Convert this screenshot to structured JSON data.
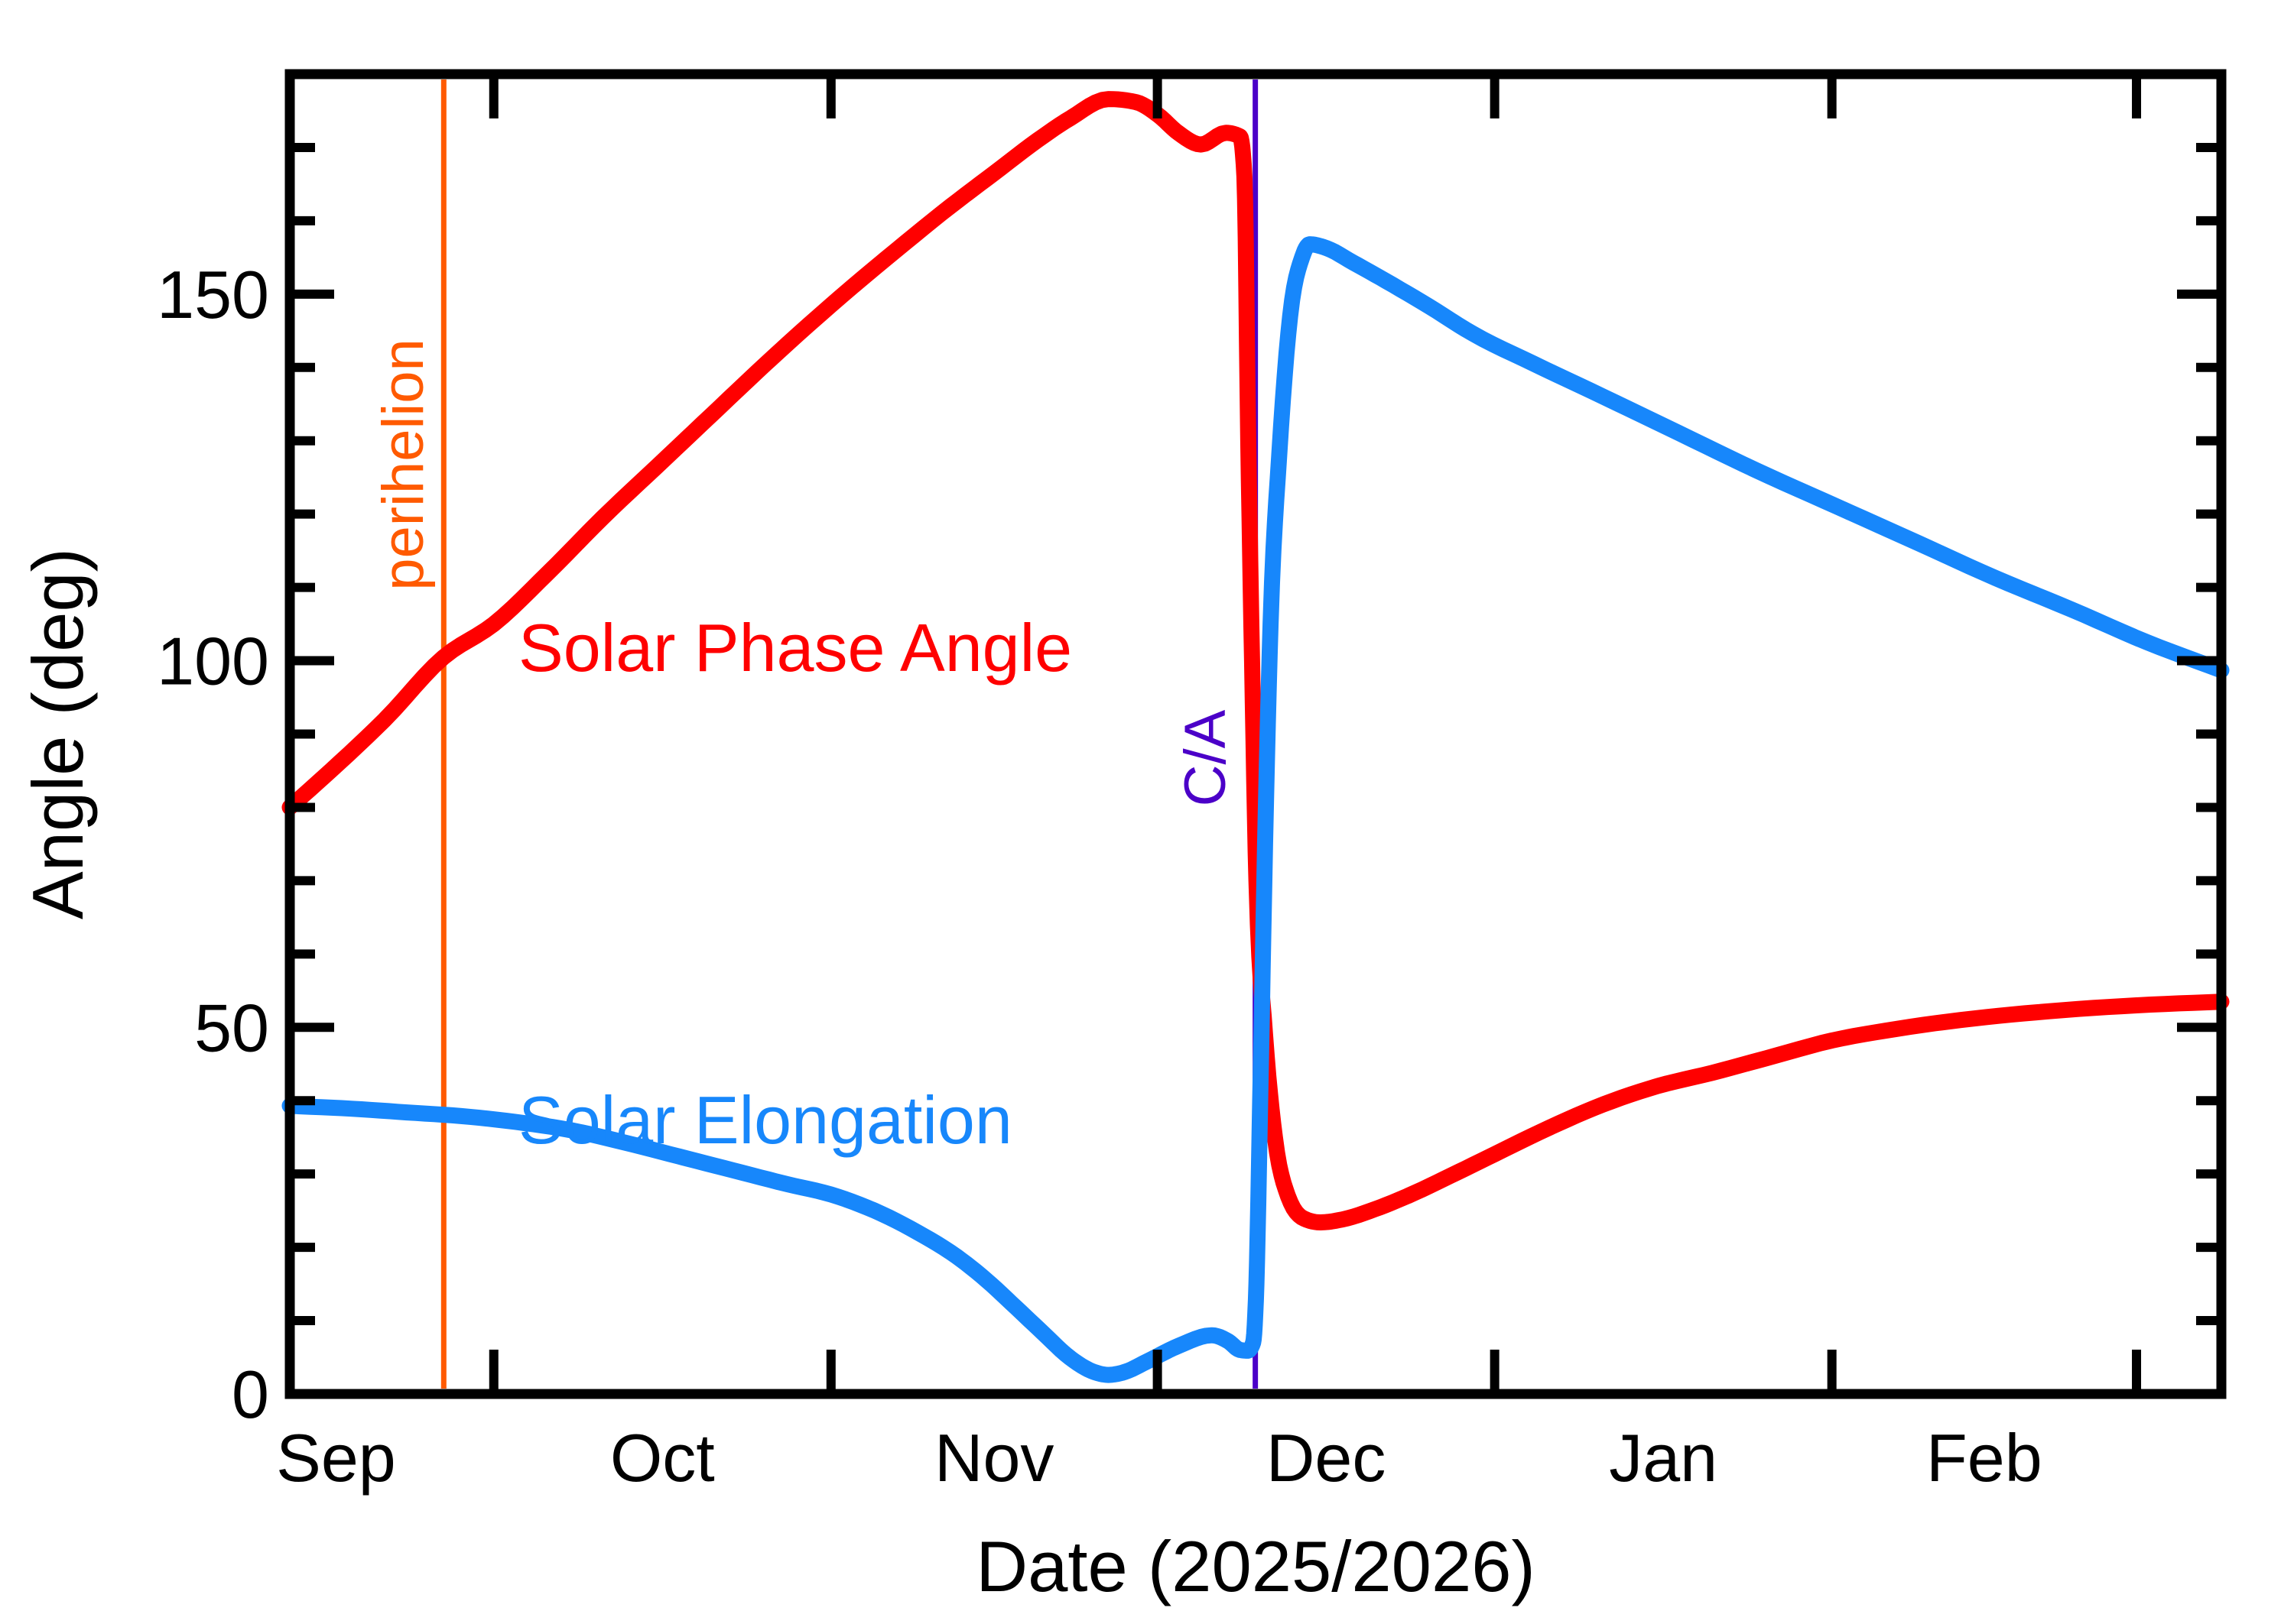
{
  "figure": {
    "background": "#ffffff",
    "frame_color": "#000000"
  },
  "colors": {
    "phase_red": "#FF0000",
    "elongation_blue": "#1787FB",
    "perihelion_orange": "#FF5A00",
    "close_approach_purple": "#4B00C8",
    "axis_black": "#000000"
  },
  "chart_data": {
    "type": "line",
    "title": "",
    "xlabel": "Date (2025/2026)",
    "ylabel": "Angle (deg)",
    "x_unit": "days since 2025-09-01",
    "x_range": [
      11.25,
      188.8
    ],
    "ylim": [
      0,
      180
    ],
    "y_major_ticks": [
      {
        "value": 0,
        "label": "0"
      },
      {
        "value": 50,
        "label": "50"
      },
      {
        "value": 100,
        "label": "100"
      },
      {
        "value": 150,
        "label": "150"
      }
    ],
    "y_minor_step": 10,
    "grid": false,
    "legend_position": "labels-on-curves",
    "x_month_boundary_days": [
      30,
      61,
      91,
      122,
      153,
      181
    ],
    "x_month_labels": [
      {
        "day": 15.5,
        "label": "Sep"
      },
      {
        "day": 45.5,
        "label": "Oct"
      },
      {
        "day": 76,
        "label": "Nov"
      },
      {
        "day": 106.5,
        "label": "Dec"
      },
      {
        "day": 137.5,
        "label": "Jan"
      },
      {
        "day": 167,
        "label": "Feb"
      }
    ],
    "markers": [
      {
        "name": "perihelion",
        "day": 25.4,
        "color": "#FF5A00",
        "approx_date": "2025-09-27"
      },
      {
        "name": "C/A",
        "day": 100,
        "color": "#4B00C8",
        "approx_date": "2025-12-10"
      }
    ],
    "series": [
      {
        "name": "Solar Phase Angle",
        "color": "#FF0000",
        "points": [
          [
            11.25,
            80
          ],
          [
            15,
            85
          ],
          [
            20,
            92
          ],
          [
            25.4,
            100.5
          ],
          [
            30,
            105
          ],
          [
            35,
            112
          ],
          [
            40,
            119.5
          ],
          [
            45,
            126.5
          ],
          [
            50,
            133.5
          ],
          [
            55,
            140.5
          ],
          [
            61,
            148.5
          ],
          [
            67,
            156
          ],
          [
            72,
            162
          ],
          [
            76,
            166.5
          ],
          [
            80,
            171
          ],
          [
            83,
            174
          ],
          [
            86.5,
            176.6
          ],
          [
            89,
            176.2
          ],
          [
            91,
            174.5
          ],
          [
            93,
            171.9
          ],
          [
            95,
            170.4
          ],
          [
            97.3,
            172
          ],
          [
            98.6,
            171.5
          ],
          [
            99.0,
            166
          ],
          [
            99.35,
            130
          ],
          [
            99.7,
            100
          ],
          [
            100.1,
            70
          ],
          [
            100.9,
            49
          ],
          [
            101.8,
            35
          ],
          [
            103,
            27
          ],
          [
            104.5,
            23.9
          ],
          [
            106,
            23.4
          ],
          [
            108,
            23.8
          ],
          [
            111,
            25.2
          ],
          [
            114,
            27
          ],
          [
            118,
            29.8
          ],
          [
            122,
            32.7
          ],
          [
            127,
            36.3
          ],
          [
            132,
            39.5
          ],
          [
            137,
            42
          ],
          [
            142,
            43.8
          ],
          [
            147,
            45.8
          ],
          [
            153,
            48.2
          ],
          [
            159,
            49.8
          ],
          [
            166,
            51.2
          ],
          [
            173,
            52.2
          ],
          [
            181,
            53
          ],
          [
            188.8,
            53.5
          ]
        ]
      },
      {
        "name": "Solar Elongation",
        "color": "#1787FB",
        "points": [
          [
            11.25,
            39.3
          ],
          [
            17,
            38.9
          ],
          [
            22,
            38.4
          ],
          [
            27,
            37.9
          ],
          [
            32,
            37.1
          ],
          [
            37,
            36
          ],
          [
            42,
            34.3
          ],
          [
            47,
            32.4
          ],
          [
            52,
            30.5
          ],
          [
            57,
            28.6
          ],
          [
            61,
            27.2
          ],
          [
            65,
            25
          ],
          [
            69,
            22
          ],
          [
            72.5,
            18.8
          ],
          [
            75.3,
            15.5
          ],
          [
            78,
            11.8
          ],
          [
            80.5,
            8.3
          ],
          [
            83,
            4.9
          ],
          [
            85,
            3.1
          ],
          [
            86.5,
            2.6
          ],
          [
            88,
            3
          ],
          [
            90,
            4.4
          ],
          [
            93,
            6.6
          ],
          [
            96,
            8
          ],
          [
            97.5,
            7.2
          ],
          [
            98.6,
            6
          ],
          [
            99.3,
            5.9
          ],
          [
            99.8,
            7
          ],
          [
            100.1,
            15
          ],
          [
            100.45,
            40
          ],
          [
            100.9,
            75
          ],
          [
            101.4,
            105
          ],
          [
            102.2,
            128
          ],
          [
            103.2,
            147
          ],
          [
            104.3,
            155
          ],
          [
            105,
            156.8
          ],
          [
            106.5,
            156.3
          ],
          [
            109,
            154.3
          ],
          [
            112,
            151.8
          ],
          [
            116,
            148.3
          ],
          [
            120,
            144.6
          ],
          [
            125.6,
            140.5
          ],
          [
            132,
            136
          ],
          [
            139,
            131
          ],
          [
            146,
            126
          ],
          [
            153.5,
            121
          ],
          [
            161,
            116
          ],
          [
            168,
            111.3
          ],
          [
            175,
            107
          ],
          [
            182,
            102.5
          ],
          [
            188.8,
            98.7
          ]
        ]
      }
    ]
  }
}
